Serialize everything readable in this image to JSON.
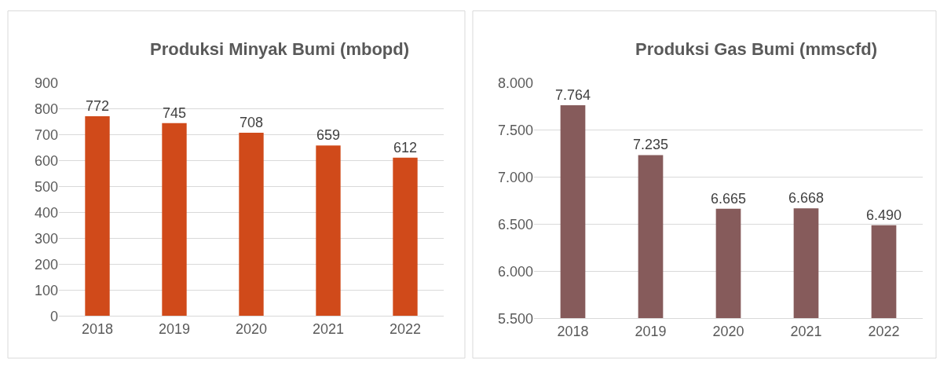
{
  "chart_data": [
    {
      "type": "bar",
      "title": "Produksi Minyak Bumi (mbopd)",
      "categories": [
        "2018",
        "2019",
        "2020",
        "2021",
        "2022"
      ],
      "values": [
        772,
        745,
        708,
        659,
        612
      ],
      "color": "#d04a1a",
      "ylim": [
        0,
        900
      ],
      "yticks": [
        0,
        100,
        200,
        300,
        400,
        500,
        600,
        700,
        800,
        900
      ],
      "grid": "y",
      "data_labels": true
    },
    {
      "type": "bar",
      "title": "Produksi Gas Bumi (mmscfd)",
      "categories": [
        "2018",
        "2019",
        "2020",
        "2021",
        "2022"
      ],
      "values": [
        7764,
        7235,
        6665,
        6668,
        6490
      ],
      "value_labels": [
        "7.764",
        "7.235",
        "6.665",
        "6.668",
        "6.490"
      ],
      "color": "#865b5b",
      "ylim": [
        5500,
        8000
      ],
      "yticks": [
        {
          "value": 5500,
          "label": "5.500"
        },
        {
          "value": 6000,
          "label": "6.000"
        },
        {
          "value": 6500,
          "label": "6.500"
        },
        {
          "value": 7000,
          "label": "7.000"
        },
        {
          "value": 7500,
          "label": "7.500"
        },
        {
          "value": 8000,
          "label": "8.000"
        }
      ],
      "grid": "y"
    }
  ]
}
